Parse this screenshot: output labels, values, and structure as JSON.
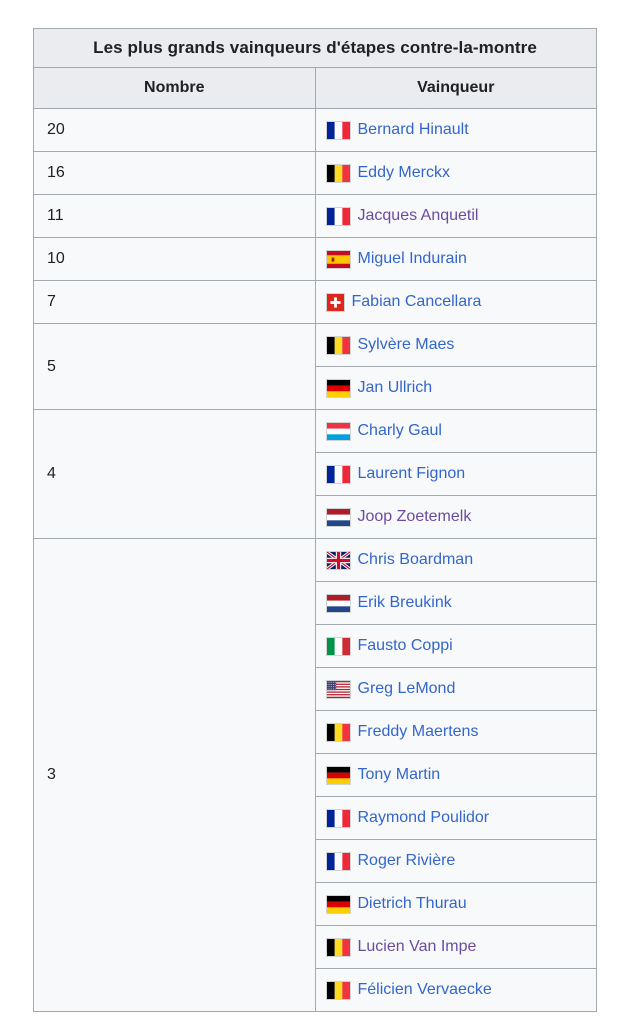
{
  "table": {
    "title": "Les plus grands vainqueurs d'étapes contre-la-montre",
    "columns": [
      "Nombre",
      "Vainqueur"
    ],
    "groups": [
      {
        "count": "20",
        "riders": [
          {
            "name": "Bernard Hinault",
            "country": "france",
            "visited": false
          }
        ]
      },
      {
        "count": "16",
        "riders": [
          {
            "name": "Eddy Merckx",
            "country": "belgium",
            "visited": false
          }
        ]
      },
      {
        "count": "11",
        "riders": [
          {
            "name": "Jacques Anquetil",
            "country": "france",
            "visited": true
          }
        ]
      },
      {
        "count": "10",
        "riders": [
          {
            "name": "Miguel Indurain",
            "country": "spain",
            "visited": false
          }
        ]
      },
      {
        "count": "7",
        "riders": [
          {
            "name": "Fabian Cancellara",
            "country": "switzerland",
            "visited": false
          }
        ]
      },
      {
        "count": "5",
        "riders": [
          {
            "name": "Sylvère Maes",
            "country": "belgium",
            "visited": false
          },
          {
            "name": "Jan Ullrich",
            "country": "germany",
            "visited": false
          }
        ]
      },
      {
        "count": "4",
        "riders": [
          {
            "name": "Charly Gaul",
            "country": "luxembourg",
            "visited": false
          },
          {
            "name": "Laurent Fignon",
            "country": "france",
            "visited": false
          },
          {
            "name": "Joop Zoetemelk",
            "country": "netherlands",
            "visited": true
          }
        ]
      },
      {
        "count": "3",
        "riders": [
          {
            "name": "Chris Boardman",
            "country": "uk",
            "visited": false
          },
          {
            "name": "Erik Breukink",
            "country": "netherlands",
            "visited": false
          },
          {
            "name": "Fausto Coppi",
            "country": "italy",
            "visited": false
          },
          {
            "name": "Greg LeMond",
            "country": "usa",
            "visited": false
          },
          {
            "name": "Freddy Maertens",
            "country": "belgium",
            "visited": false
          },
          {
            "name": "Tony Martin",
            "country": "germany",
            "visited": false
          },
          {
            "name": "Raymond Poulidor",
            "country": "france",
            "visited": false
          },
          {
            "name": "Roger Rivière",
            "country": "france",
            "visited": false
          },
          {
            "name": "Dietrich Thurau",
            "country": "germany",
            "visited": false
          },
          {
            "name": "Lucien Van Impe",
            "country": "belgium",
            "visited": true
          },
          {
            "name": "Félicien Vervaecke",
            "country": "belgium",
            "visited": false
          }
        ]
      }
    ]
  },
  "colors": {
    "text": "#202122",
    "link": "#3366cc",
    "link_visited": "#6b4ba1",
    "header_bg": "#eaecf0",
    "row_bg": "#f8f9fa",
    "border": "#a2a9b1",
    "page_bg": "#ffffff"
  },
  "flags": {
    "france": {
      "icon": "flag-france-icon",
      "type": "vertical",
      "colors": [
        "#002395",
        "#ffffff",
        "#ED2939"
      ]
    },
    "belgium": {
      "icon": "flag-belgium-icon",
      "type": "vertical",
      "colors": [
        "#000000",
        "#FDDA24",
        "#EF3340"
      ]
    },
    "italy": {
      "icon": "flag-italy-icon",
      "type": "vertical",
      "colors": [
        "#009246",
        "#ffffff",
        "#CE2B37"
      ]
    },
    "germany": {
      "icon": "flag-germany-icon",
      "type": "horizontal",
      "colors": [
        "#000000",
        "#DD0000",
        "#FFCE00"
      ]
    },
    "luxembourg": {
      "icon": "flag-luxembourg-icon",
      "type": "horizontal",
      "colors": [
        "#EF3340",
        "#ffffff",
        "#00A1DE"
      ]
    },
    "netherlands": {
      "icon": "flag-netherlands-icon",
      "type": "horizontal",
      "colors": [
        "#AE1C28",
        "#ffffff",
        "#21468B"
      ]
    },
    "spain": {
      "icon": "flag-spain-icon",
      "type": "spain",
      "colors": [
        "#C60B1E",
        "#FFC400",
        "#AD1519"
      ]
    },
    "switzerland": {
      "icon": "flag-switzerland-icon",
      "type": "swiss",
      "colors": [
        "#DA291C",
        "#ffffff"
      ]
    },
    "uk": {
      "icon": "flag-uk-icon",
      "type": "union-jack",
      "colors": [
        "#012169",
        "#ffffff",
        "#C8102E"
      ]
    },
    "usa": {
      "icon": "flag-usa-icon",
      "type": "stars-stripes",
      "colors": [
        "#B22234",
        "#ffffff",
        "#3C3B6E"
      ]
    }
  }
}
